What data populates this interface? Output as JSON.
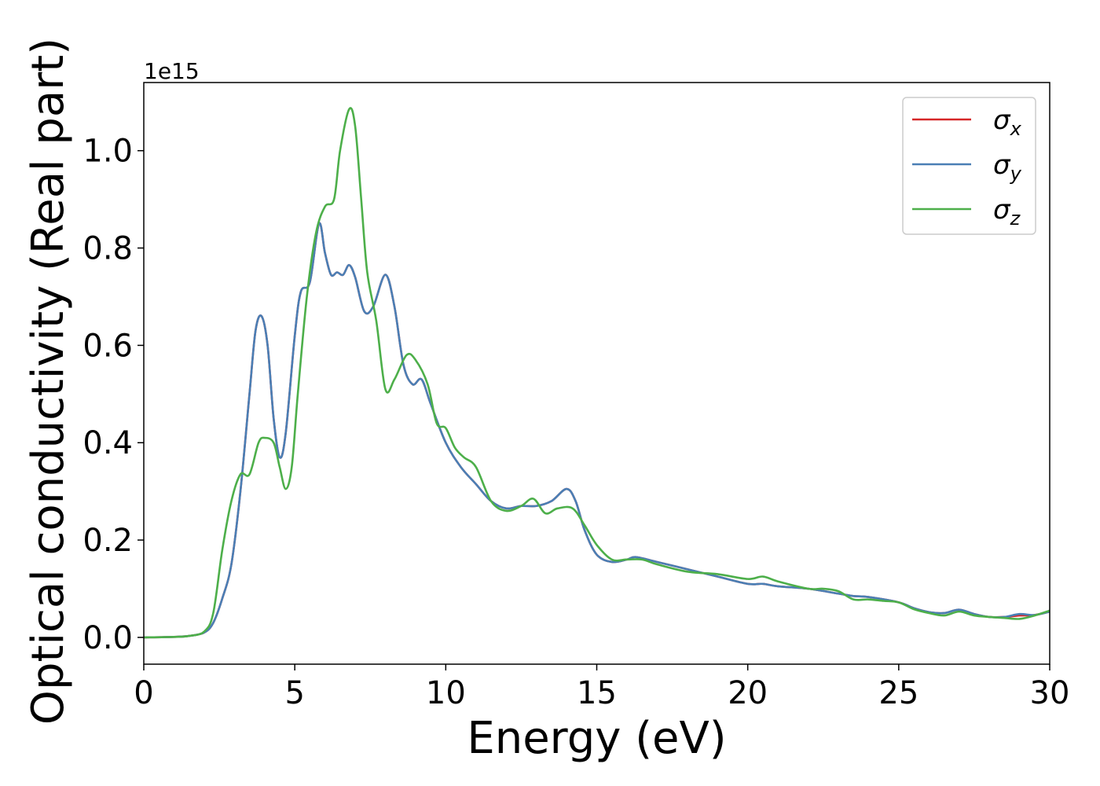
{
  "chart_data": {
    "type": "line",
    "title": "",
    "xlabel": "Energy (eV)",
    "ylabel": "Optical conductivity (Real part)",
    "y_offset_label": "1e15",
    "xlim": [
      0,
      30
    ],
    "ylim": [
      -0.055,
      1.14
    ],
    "x_ticks": [
      0,
      5,
      10,
      15,
      20,
      25,
      30
    ],
    "x_tick_labels": [
      "0",
      "5",
      "10",
      "15",
      "20",
      "25",
      "30"
    ],
    "y_ticks": [
      0.0,
      0.2,
      0.4,
      0.6,
      0.8,
      1.0
    ],
    "y_tick_labels": [
      "0.0",
      "0.2",
      "0.4",
      "0.6",
      "0.8",
      "1.0"
    ],
    "grid": false,
    "legend_position": "top-right",
    "series": [
      {
        "name": "σx",
        "symbol": "σ",
        "subscript": "x",
        "color": "#d62728",
        "points": [
          [
            0,
            0
          ],
          [
            1,
            0.001
          ],
          [
            1.5,
            0.003
          ],
          [
            2,
            0.01
          ],
          [
            2.3,
            0.03
          ],
          [
            2.6,
            0.08
          ],
          [
            2.9,
            0.15
          ],
          [
            3.2,
            0.3
          ],
          [
            3.5,
            0.5
          ],
          [
            3.7,
            0.63
          ],
          [
            3.9,
            0.66
          ],
          [
            4.1,
            0.6
          ],
          [
            4.3,
            0.45
          ],
          [
            4.5,
            0.37
          ],
          [
            4.7,
            0.42
          ],
          [
            5,
            0.62
          ],
          [
            5.2,
            0.71
          ],
          [
            5.5,
            0.73
          ],
          [
            5.8,
            0.85
          ],
          [
            6,
            0.79
          ],
          [
            6.2,
            0.745
          ],
          [
            6.4,
            0.75
          ],
          [
            6.6,
            0.745
          ],
          [
            6.8,
            0.765
          ],
          [
            7,
            0.74
          ],
          [
            7.3,
            0.67
          ],
          [
            7.6,
            0.68
          ],
          [
            8,
            0.745
          ],
          [
            8.3,
            0.68
          ],
          [
            8.6,
            0.56
          ],
          [
            8.9,
            0.52
          ],
          [
            9.2,
            0.53
          ],
          [
            9.5,
            0.48
          ],
          [
            10,
            0.4
          ],
          [
            10.5,
            0.35
          ],
          [
            11,
            0.315
          ],
          [
            11.5,
            0.28
          ],
          [
            12,
            0.265
          ],
          [
            12.5,
            0.27
          ],
          [
            13,
            0.27
          ],
          [
            13.5,
            0.28
          ],
          [
            14,
            0.305
          ],
          [
            14.3,
            0.28
          ],
          [
            14.6,
            0.22
          ],
          [
            15,
            0.17
          ],
          [
            15.5,
            0.155
          ],
          [
            16,
            0.16
          ],
          [
            16.3,
            0.165
          ],
          [
            17,
            0.155
          ],
          [
            18,
            0.14
          ],
          [
            19,
            0.125
          ],
          [
            20,
            0.11
          ],
          [
            20.5,
            0.11
          ],
          [
            21,
            0.105
          ],
          [
            22,
            0.1
          ],
          [
            23,
            0.09
          ],
          [
            23.5,
            0.085
          ],
          [
            24,
            0.083
          ],
          [
            25,
            0.072
          ],
          [
            25.5,
            0.06
          ],
          [
            26,
            0.052
          ],
          [
            26.5,
            0.05
          ],
          [
            27,
            0.057
          ],
          [
            27.5,
            0.048
          ],
          [
            28,
            0.042
          ],
          [
            28.5,
            0.042
          ],
          [
            29,
            0.045
          ],
          [
            29.5,
            0.046
          ],
          [
            30,
            0.053
          ]
        ]
      },
      {
        "name": "σy",
        "symbol": "σ",
        "subscript": "y",
        "color": "#4a7fb5",
        "points": [
          [
            0,
            0
          ],
          [
            1,
            0.001
          ],
          [
            1.5,
            0.003
          ],
          [
            2,
            0.01
          ],
          [
            2.3,
            0.03
          ],
          [
            2.6,
            0.08
          ],
          [
            2.9,
            0.15
          ],
          [
            3.2,
            0.3
          ],
          [
            3.5,
            0.5
          ],
          [
            3.7,
            0.63
          ],
          [
            3.9,
            0.66
          ],
          [
            4.1,
            0.6
          ],
          [
            4.3,
            0.45
          ],
          [
            4.5,
            0.37
          ],
          [
            4.7,
            0.42
          ],
          [
            5,
            0.62
          ],
          [
            5.2,
            0.71
          ],
          [
            5.5,
            0.73
          ],
          [
            5.8,
            0.85
          ],
          [
            6,
            0.79
          ],
          [
            6.2,
            0.745
          ],
          [
            6.4,
            0.75
          ],
          [
            6.6,
            0.745
          ],
          [
            6.8,
            0.765
          ],
          [
            7,
            0.74
          ],
          [
            7.3,
            0.67
          ],
          [
            7.6,
            0.68
          ],
          [
            8,
            0.745
          ],
          [
            8.3,
            0.68
          ],
          [
            8.6,
            0.56
          ],
          [
            8.9,
            0.52
          ],
          [
            9.2,
            0.53
          ],
          [
            9.5,
            0.48
          ],
          [
            10,
            0.4
          ],
          [
            10.5,
            0.35
          ],
          [
            11,
            0.315
          ],
          [
            11.5,
            0.28
          ],
          [
            12,
            0.265
          ],
          [
            12.5,
            0.27
          ],
          [
            13,
            0.27
          ],
          [
            13.5,
            0.28
          ],
          [
            14,
            0.305
          ],
          [
            14.3,
            0.28
          ],
          [
            14.6,
            0.22
          ],
          [
            15,
            0.17
          ],
          [
            15.5,
            0.155
          ],
          [
            16,
            0.16
          ],
          [
            16.3,
            0.165
          ],
          [
            17,
            0.155
          ],
          [
            18,
            0.14
          ],
          [
            19,
            0.125
          ],
          [
            20,
            0.11
          ],
          [
            20.5,
            0.11
          ],
          [
            21,
            0.105
          ],
          [
            22,
            0.1
          ],
          [
            23,
            0.09
          ],
          [
            23.5,
            0.085
          ],
          [
            24,
            0.083
          ],
          [
            25,
            0.072
          ],
          [
            25.5,
            0.06
          ],
          [
            26,
            0.052
          ],
          [
            26.5,
            0.05
          ],
          [
            27,
            0.057
          ],
          [
            27.5,
            0.048
          ],
          [
            28,
            0.042
          ],
          [
            28.5,
            0.042
          ],
          [
            29,
            0.048
          ],
          [
            29.5,
            0.046
          ],
          [
            30,
            0.053
          ]
        ]
      },
      {
        "name": "σz",
        "symbol": "σ",
        "subscript": "z",
        "color": "#4daf4a",
        "points": [
          [
            0,
            0
          ],
          [
            1,
            0.001
          ],
          [
            1.5,
            0.003
          ],
          [
            2,
            0.012
          ],
          [
            2.3,
            0.05
          ],
          [
            2.6,
            0.18
          ],
          [
            2.9,
            0.28
          ],
          [
            3.2,
            0.335
          ],
          [
            3.5,
            0.335
          ],
          [
            3.8,
            0.4
          ],
          [
            4,
            0.41
          ],
          [
            4.3,
            0.4
          ],
          [
            4.5,
            0.35
          ],
          [
            4.7,
            0.305
          ],
          [
            4.9,
            0.35
          ],
          [
            5.1,
            0.5
          ],
          [
            5.4,
            0.7
          ],
          [
            5.7,
            0.83
          ],
          [
            6,
            0.885
          ],
          [
            6.3,
            0.9
          ],
          [
            6.5,
            1.0
          ],
          [
            6.8,
            1.085
          ],
          [
            7,
            1.05
          ],
          [
            7.2,
            0.9
          ],
          [
            7.4,
            0.75
          ],
          [
            7.7,
            0.65
          ],
          [
            8,
            0.51
          ],
          [
            8.3,
            0.53
          ],
          [
            8.7,
            0.58
          ],
          [
            9,
            0.57
          ],
          [
            9.4,
            0.52
          ],
          [
            9.7,
            0.44
          ],
          [
            10,
            0.43
          ],
          [
            10.3,
            0.39
          ],
          [
            10.6,
            0.37
          ],
          [
            11,
            0.35
          ],
          [
            11.5,
            0.28
          ],
          [
            12,
            0.26
          ],
          [
            12.5,
            0.27
          ],
          [
            12.9,
            0.285
          ],
          [
            13.3,
            0.255
          ],
          [
            13.7,
            0.265
          ],
          [
            14.2,
            0.265
          ],
          [
            14.6,
            0.23
          ],
          [
            15,
            0.19
          ],
          [
            15.5,
            0.16
          ],
          [
            16,
            0.16
          ],
          [
            16.5,
            0.16
          ],
          [
            17,
            0.15
          ],
          [
            18,
            0.135
          ],
          [
            19,
            0.13
          ],
          [
            20,
            0.12
          ],
          [
            20.5,
            0.125
          ],
          [
            21,
            0.115
          ],
          [
            22,
            0.1
          ],
          [
            22.5,
            0.1
          ],
          [
            23,
            0.095
          ],
          [
            23.5,
            0.078
          ],
          [
            24,
            0.078
          ],
          [
            24.5,
            0.075
          ],
          [
            25,
            0.072
          ],
          [
            25.5,
            0.058
          ],
          [
            26,
            0.05
          ],
          [
            26.5,
            0.045
          ],
          [
            27,
            0.053
          ],
          [
            27.5,
            0.045
          ],
          [
            28,
            0.042
          ],
          [
            28.5,
            0.04
          ],
          [
            29,
            0.038
          ],
          [
            29.5,
            0.045
          ],
          [
            30,
            0.055
          ]
        ]
      }
    ]
  }
}
